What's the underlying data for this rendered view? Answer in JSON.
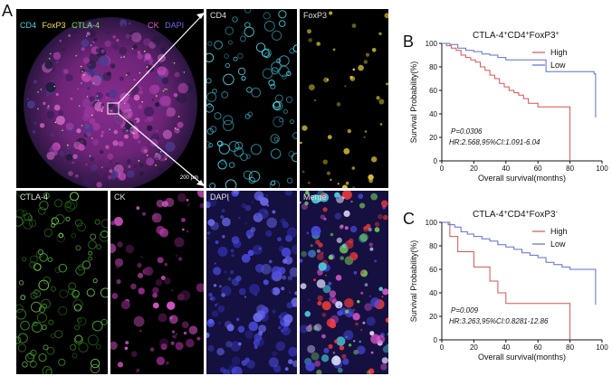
{
  "panel_labels": {
    "a": "A",
    "b": "B",
    "c": "C"
  },
  "overview": {
    "stains": [
      {
        "name": "CD4",
        "color": "#4fd3e3"
      },
      {
        "name": "FoxP3",
        "color": "#f5e14a"
      },
      {
        "name": "CTLA-4",
        "color": "#7fe35a"
      },
      {
        "name": "CK",
        "color": "#e45ad3"
      },
      {
        "name": "DAPI",
        "color": "#6c6cf0"
      }
    ],
    "scale_bar": "200 μm"
  },
  "tiles": {
    "cd4": "CD4",
    "foxp3": "FoxP3",
    "ctla4": "CTLA-4",
    "ck": "CK",
    "dapi": "DAPI",
    "merge": "Merge"
  },
  "colors": {
    "high": "#d9534f",
    "low": "#5b6fd6"
  },
  "chart_data": [
    {
      "type": "line",
      "title_main": "CTLA-4",
      "title_sup1": "+",
      "title_mid1": "CD4",
      "title_sup2": "+",
      "title_mid2": "FoxP3",
      "title_sup3": "+",
      "xlabel": "Overall survival(months)",
      "ylabel": "Survival Probability(%)",
      "xlim": [
        0,
        100
      ],
      "ylim": [
        0,
        100
      ],
      "xticks": [
        "0",
        "20",
        "40",
        "60",
        "80",
        "100"
      ],
      "yticks": [
        "0",
        "20",
        "40",
        "60",
        "80",
        "100"
      ],
      "stat_p": "P=0.0306",
      "stat_hr": "HR:2.568,95%CI:1.091-6.04",
      "series": [
        {
          "name": "High",
          "color": "#d9534f",
          "x": [
            0,
            3,
            6,
            9,
            12,
            15,
            18,
            21,
            24,
            27,
            30,
            33,
            36,
            39,
            42,
            45,
            48,
            51,
            54,
            60,
            65,
            70,
            75,
            80,
            80
          ],
          "y": [
            100,
            98,
            96,
            94,
            90,
            88,
            86,
            84,
            80,
            77,
            73,
            70,
            66,
            63,
            60,
            58,
            56,
            53,
            49,
            46,
            46,
            46,
            46,
            46,
            0
          ]
        },
        {
          "name": "Low",
          "color": "#5b6fd6",
          "x": [
            0,
            5,
            10,
            15,
            20,
            25,
            30,
            35,
            40,
            45,
            50,
            55,
            60,
            65,
            70,
            75,
            80,
            85,
            90,
            95,
            96
          ],
          "y": [
            100,
            99,
            96,
            94,
            93,
            91,
            90,
            88,
            86,
            86,
            86,
            86,
            86,
            76,
            76,
            76,
            76,
            76,
            76,
            74,
            37
          ]
        }
      ]
    },
    {
      "type": "line",
      "title_main": "CTLA-4",
      "title_sup1": "+",
      "title_mid1": "CD4",
      "title_sup2": "+",
      "title_mid2": "FoxP3",
      "title_sup3": "-",
      "xlabel": "Overall survival(months)",
      "ylabel": "Survival Probability(%)",
      "xlim": [
        0,
        100
      ],
      "ylim": [
        0,
        100
      ],
      "xticks": [
        "0",
        "20",
        "40",
        "60",
        "80",
        "100"
      ],
      "yticks": [
        "0",
        "20",
        "40",
        "60",
        "80",
        "100"
      ],
      "stat_p": "P=0.009",
      "stat_hr": "HR:3.263,95%CI:0.8281-12.86",
      "series": [
        {
          "name": "High",
          "color": "#d9534f",
          "x": [
            0,
            5,
            10,
            15,
            20,
            25,
            30,
            35,
            40,
            45,
            50,
            55,
            60,
            70,
            80,
            80
          ],
          "y": [
            100,
            88,
            75,
            75,
            62,
            62,
            50,
            40,
            31,
            31,
            31,
            31,
            31,
            31,
            31,
            0
          ]
        },
        {
          "name": "Low",
          "color": "#5b6fd6",
          "x": [
            0,
            4,
            8,
            12,
            16,
            20,
            25,
            30,
            35,
            40,
            45,
            50,
            55,
            60,
            65,
            70,
            75,
            80,
            85,
            90,
            95,
            96
          ],
          "y": [
            100,
            98,
            96,
            92,
            90,
            88,
            86,
            84,
            81,
            79,
            77,
            74,
            72,
            70,
            66,
            64,
            62,
            60,
            60,
            60,
            60,
            30
          ]
        }
      ]
    }
  ]
}
